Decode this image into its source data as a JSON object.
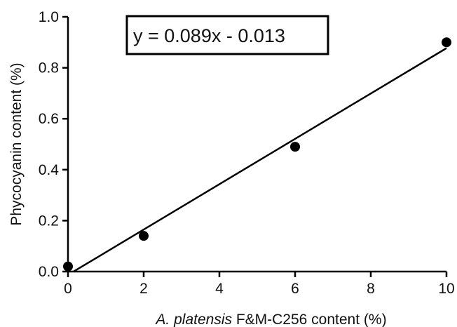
{
  "chart_data": {
    "type": "scatter",
    "xlabel_italic": "A. platensis",
    "xlabel_rest": " F&M-C256 content (%)",
    "ylabel": "Phycocyanin content (%)",
    "xlim": [
      0,
      10
    ],
    "ylim": [
      0,
      1.0
    ],
    "xticks": [
      0,
      2,
      4,
      6,
      8,
      10
    ],
    "yticks": [
      0.0,
      0.2,
      0.4,
      0.6,
      0.8,
      1.0
    ],
    "xtick_labels": [
      "0",
      "2",
      "4",
      "6",
      "8",
      "10"
    ],
    "ytick_labels": [
      "0.0",
      "0.2",
      "0.4",
      "0.6",
      "0.8",
      "1.0"
    ],
    "points": [
      {
        "x": 0,
        "y": 0.02
      },
      {
        "x": 2,
        "y": 0.14
      },
      {
        "x": 6,
        "y": 0.49
      },
      {
        "x": 10,
        "y": 0.9
      }
    ],
    "fit": {
      "slope": 0.089,
      "intercept": -0.013,
      "x_range": [
        0,
        10
      ]
    },
    "annotation": "y = 0.089x - 0.013",
    "grid": false,
    "marker_color": "#000000"
  }
}
